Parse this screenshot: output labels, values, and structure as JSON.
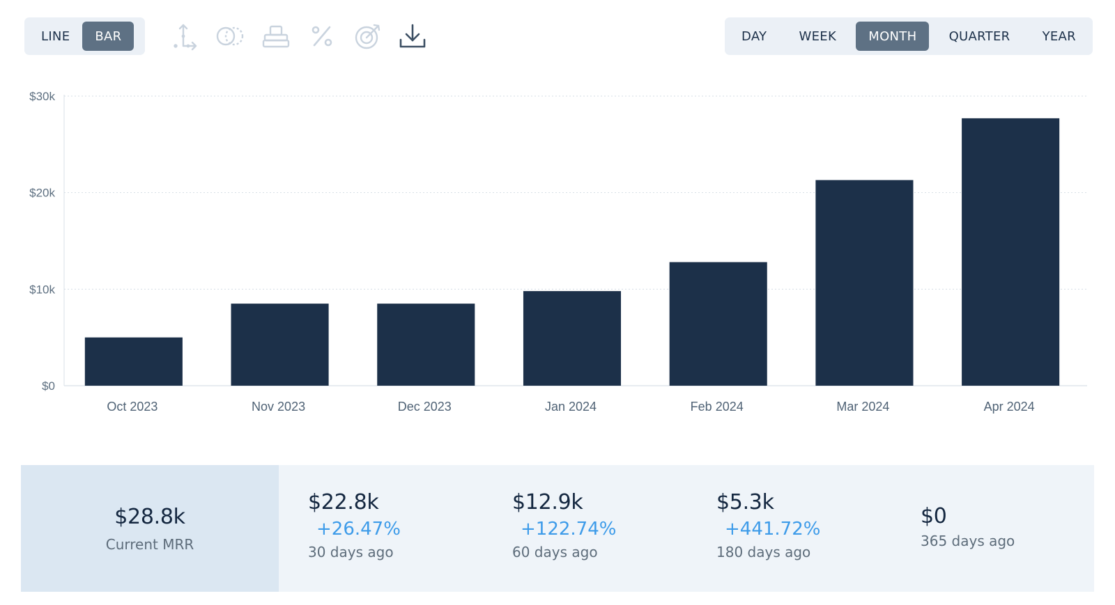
{
  "toolbar": {
    "chart_types": [
      {
        "label": "LINE",
        "active": false
      },
      {
        "label": "BAR",
        "active": true
      }
    ],
    "tools": [
      "axis-icon",
      "compare-icon",
      "stack-icon",
      "percent-icon",
      "target-icon",
      "download-icon"
    ],
    "intervals": [
      {
        "label": "DAY",
        "active": false
      },
      {
        "label": "WEEK",
        "active": false
      },
      {
        "label": "MONTH",
        "active": true
      },
      {
        "label": "QUARTER",
        "active": false
      },
      {
        "label": "YEAR",
        "active": false
      }
    ]
  },
  "colors": {
    "bar": "#1c3049",
    "accent": "#3d9be9",
    "active_button": "#5e7184"
  },
  "chart_data": {
    "type": "bar",
    "categories": [
      "Oct 2023",
      "Nov 2023",
      "Dec 2023",
      "Jan 2024",
      "Feb 2024",
      "Mar 2024",
      "Apr 2024"
    ],
    "values": [
      5000,
      8500,
      8500,
      9800,
      12800,
      21300,
      27700
    ],
    "ylim": [
      0,
      30000
    ],
    "yticks": [
      0,
      10000,
      20000,
      30000
    ],
    "ytick_labels": [
      "$0",
      "$10k",
      "$20k",
      "$30k"
    ],
    "grid": true,
    "xlabel": "",
    "ylabel": "",
    "title": ""
  },
  "stats": {
    "current": {
      "value": "$28.8k",
      "label": "Current MRR"
    },
    "history": [
      {
        "value": "$22.8k",
        "change": "+26.47%",
        "label": "30 days ago"
      },
      {
        "value": "$12.9k",
        "change": "+122.74%",
        "label": "60 days ago"
      },
      {
        "value": "$5.3k",
        "change": "+441.72%",
        "label": "180 days ago"
      },
      {
        "value": "$0",
        "change": "",
        "label": "365 days ago"
      }
    ]
  }
}
